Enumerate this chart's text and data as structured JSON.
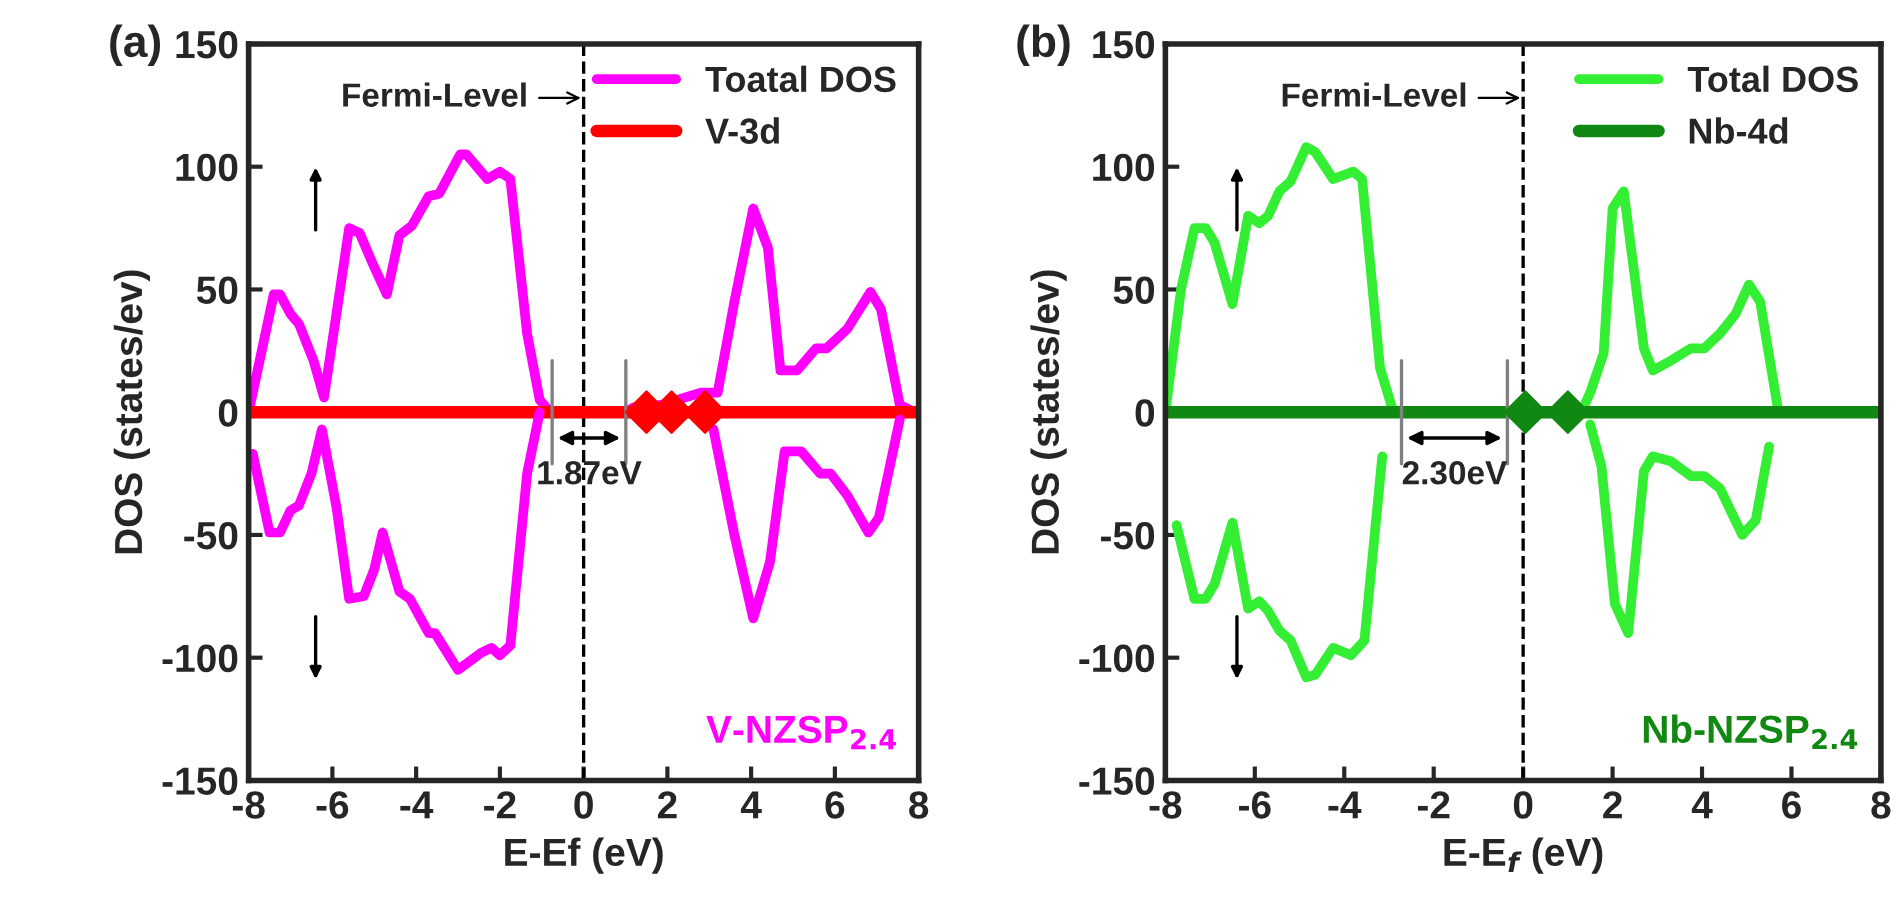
{
  "chart_data": [
    {
      "type": "line",
      "title": "(a)",
      "xlabel": "E-Ef (eV)",
      "ylabel": "DOS (states/ev)",
      "xlim": [
        -8,
        8
      ],
      "ylim": [
        -150,
        150
      ],
      "xticks": [
        -8,
        -6,
        -4,
        -2,
        0,
        2,
        4,
        6,
        8
      ],
      "yticks": [
        -150,
        -100,
        -50,
        0,
        50,
        100,
        150
      ],
      "legend": "top right",
      "grid": false,
      "line_style": "solid",
      "ref_lines": [
        {
          "axis": "x",
          "value": 0,
          "label": null,
          "color": "#000000",
          "line_style": "dashed"
        }
      ],
      "annotations": [
        {
          "text": "Fermi-Level",
          "x": 0,
          "y": 128
        },
        "1.87eV",
        "V-NZSP$_{2.4}$"
      ],
      "series": [
        {
          "name": "Toatal DOS",
          "color": "#ff00ff",
          "marker": "none",
          "x": [
            -8,
            -7.8,
            -7.4,
            -7.25,
            -7,
            -6.8,
            -6.45,
            -6.2,
            -5.6,
            -5.35,
            -5.05,
            -4.7,
            -4.4,
            -4.1,
            -3.7,
            -3.45,
            -2.95,
            -2.8,
            -2.3,
            -2,
            -1.75,
            -1.35,
            -1.05,
            -0.8,
            1.0,
            1.2,
            1.85,
            2.8,
            3.2,
            3.6,
            4.05,
            4.4,
            4.7,
            5.1,
            5.55,
            5.8,
            6.3,
            6.85,
            7.1,
            7.55,
            7.9,
            8
          ],
          "values": [
            0,
            16,
            48,
            48,
            40,
            36,
            21,
            6,
            75,
            73,
            61,
            48,
            72,
            76,
            88,
            89,
            105,
            105,
            95,
            98,
            95,
            32,
            5,
            0,
            0,
            2,
            3,
            8,
            8,
            45,
            83,
            67,
            17,
            17,
            26,
            26,
            34,
            49,
            42,
            3,
            0,
            0
          ]
        },
        {
          "name": "V-3d",
          "color": "#ff0000",
          "marker": "none",
          "x": [
            -8,
            8
          ],
          "values": [
            0,
            0
          ]
        },
        {
          "type": "scatter",
          "color": "#ff0000",
          "marker": "diamond",
          "x": [
            1.5,
            2.1,
            2.9
          ],
          "values": [
            0,
            0,
            0
          ]
        },
        {
          "color": "#ff00ff",
          "marker": "none",
          "x": [
            -7.9,
            -7.5,
            -7.25,
            -7,
            -6.8,
            -6.5,
            -6.25,
            -5.9,
            -5.6,
            -5.25,
            -5,
            -4.8,
            -4.4,
            -4.15,
            -3.7,
            -3.55,
            -3,
            -2.45,
            -2.2,
            -2,
            -1.75,
            -1.35,
            -1.05
          ],
          "values": [
            -17,
            -49,
            -49,
            -40,
            -38,
            -25,
            -7,
            -39,
            -76,
            -75,
            -64,
            -49,
            -73,
            -76,
            -90,
            -90,
            -105,
            -98,
            -96,
            -99,
            -95,
            -25,
            0
          ]
        },
        {
          "color": "#ff00ff",
          "marker": "none",
          "x": [
            3.1,
            3.6,
            4.05,
            4.45,
            4.8,
            5.2,
            5.65,
            5.9,
            6.3,
            6.8,
            7.05,
            7.55
          ],
          "values": [
            -7,
            -50,
            -84,
            -61,
            -16,
            -16,
            -25,
            -25,
            -34,
            -49,
            -43,
            -3
          ]
        }
      ]
    },
    {
      "type": "line",
      "title": "(b)",
      "xlabel": "E-E$_{f}$ (eV)",
      "ylabel": "DOS (states/ev)",
      "xlim": [
        -8,
        8
      ],
      "ylim": [
        -150,
        150
      ],
      "xticks": [
        -8,
        -6,
        -4,
        -2,
        0,
        2,
        4,
        6,
        8
      ],
      "yticks": [
        -150,
        -100,
        -50,
        0,
        50,
        100,
        150
      ],
      "legend": "top right",
      "grid": false,
      "line_style": "solid",
      "ref_lines": [
        {
          "axis": "x",
          "value": 0,
          "label": null,
          "color": "#000000",
          "line_style": "dashed"
        }
      ],
      "annotations": [
        {
          "text": "Fermi-Level",
          "x": 0,
          "y": 128
        },
        "2.30eV",
        "Nb-NZSP$_{2.4}$"
      ],
      "series": [
        {
          "name": "Total DOS",
          "color": "#33ee33",
          "marker": "none",
          "x": [
            -8,
            -7.65,
            -7.35,
            -7.1,
            -6.9,
            -6.5,
            -6.15,
            -5.9,
            -5.7,
            -5.45,
            -5.2,
            -4.85,
            -4.65,
            -4.25,
            -3.8,
            -3.6,
            -3.2,
            -2.9,
            1.3,
            1.5,
            1.8,
            2.0,
            2.25,
            2.7,
            2.9,
            3.3,
            3.75,
            4.05,
            4.4,
            4.75,
            5.05,
            5.3,
            5.7,
            5.9,
            8
          ],
          "values": [
            0,
            50,
            75,
            75,
            69,
            44,
            80,
            77,
            80,
            90,
            94,
            108,
            106,
            95,
            98,
            95,
            18,
            0,
            0,
            8,
            24,
            83,
            90,
            26,
            17,
            21,
            26,
            26,
            32,
            40,
            52,
            45,
            1,
            0,
            0
          ]
        },
        {
          "name": "Nb-4d",
          "color": "#118811",
          "marker": "none",
          "x": [
            -8,
            8
          ],
          "values": [
            0,
            0
          ]
        },
        {
          "type": "scatter",
          "color": "#118811",
          "marker": "diamond",
          "x": [
            0.05,
            1.0
          ],
          "values": [
            0,
            0
          ]
        },
        {
          "color": "#33ee33",
          "marker": "none",
          "x": [
            -7.75,
            -7.35,
            -7.1,
            -6.9,
            -6.5,
            -6.15,
            -5.9,
            -5.7,
            -5.45,
            -5.2,
            -4.85,
            -4.65,
            -4.25,
            -3.85,
            -3.55,
            -3.15
          ],
          "values": [
            -46,
            -76,
            -76,
            -70,
            -45,
            -80,
            -77,
            -81,
            -89,
            -93,
            -108,
            -107,
            -96,
            -99,
            -93,
            -18
          ]
        },
        {
          "color": "#33ee33",
          "marker": "none",
          "x": [
            1.5,
            1.75,
            2.05,
            2.35,
            2.7,
            2.9,
            3.3,
            3.75,
            4.05,
            4.4,
            4.9,
            5.2,
            5.5
          ],
          "values": [
            -5,
            -22,
            -78,
            -90,
            -24,
            -18,
            -20,
            -26,
            -26,
            -31,
            -50,
            -44,
            -14
          ]
        }
      ]
    }
  ]
}
